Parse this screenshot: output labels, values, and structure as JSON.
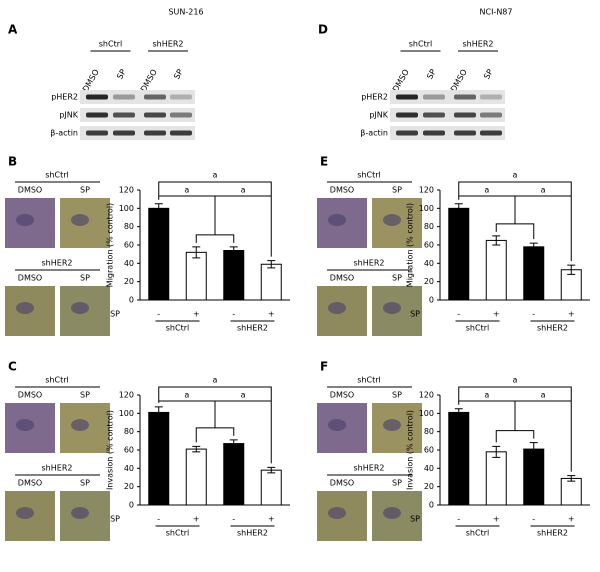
{
  "blots": [
    {
      "panel": "A",
      "cell_line": "SUN-216",
      "groups": [
        "shCtrl",
        "shHER2"
      ],
      "lanes": [
        "DMSO",
        "SP",
        "DMSO",
        "SP"
      ],
      "rows": [
        "pHER2",
        "pJNK",
        "β-actin"
      ]
    },
    {
      "panel": "D",
      "cell_line": "NCI-N87",
      "groups": [
        "shCtrl",
        "shHER2"
      ],
      "lanes": [
        "DMSO",
        "SP",
        "DMSO",
        "SP"
      ],
      "rows": [
        "pHER2",
        "pJNK",
        "β-actin"
      ]
    }
  ],
  "image_panels": [
    {
      "panel": "B",
      "rows": [
        {
          "group": "shCtrl",
          "columns": [
            "DMSO",
            "SP"
          ]
        },
        {
          "group": "shHER2",
          "columns": [
            "DMSO",
            "SP"
          ]
        }
      ]
    },
    {
      "panel": "C",
      "rows": [
        {
          "group": "shCtrl",
          "columns": [
            "DMSO",
            "SP"
          ]
        },
        {
          "group": "shHER2",
          "columns": [
            "DMSO",
            "SP"
          ]
        }
      ]
    },
    {
      "panel": "E",
      "rows": [
        {
          "group": "shCtrl",
          "columns": [
            "DMSO",
            "SP"
          ]
        },
        {
          "group": "shHER2",
          "columns": [
            "DMSO",
            "SP"
          ]
        }
      ]
    },
    {
      "panel": "F",
      "rows": [
        {
          "group": "shCtrl",
          "columns": [
            "DMSO",
            "SP"
          ]
        },
        {
          "group": "shHER2",
          "columns": [
            "DMSO",
            "SP"
          ]
        }
      ]
    }
  ],
  "chart_data": [
    {
      "type": "bar",
      "y_label": "Migration (% control)",
      "row_label": "SP",
      "categories": [
        "-",
        "+",
        "-",
        "+"
      ],
      "groups": [
        "shCtrl",
        "shHER2"
      ],
      "values": [
        100,
        52,
        54,
        39
      ],
      "errors": [
        5,
        6,
        4,
        4
      ],
      "colors": [
        "#000000",
        "#ffffff",
        "#000000",
        "#ffffff"
      ],
      "ylim": [
        0,
        120
      ],
      "yticks": [
        0,
        20,
        40,
        60,
        80,
        100,
        120
      ],
      "annotations": [
        "a",
        "a",
        "a"
      ]
    },
    {
      "type": "bar",
      "y_label": "Invasion (% control)",
      "row_label": "SP",
      "categories": [
        "-",
        "+",
        "-",
        "+"
      ],
      "groups": [
        "shCtrl",
        "shHER2"
      ],
      "values": [
        101,
        61,
        67,
        38
      ],
      "errors": [
        6,
        3,
        4,
        3
      ],
      "colors": [
        "#000000",
        "#ffffff",
        "#000000",
        "#ffffff"
      ],
      "ylim": [
        0,
        120
      ],
      "yticks": [
        0,
        20,
        40,
        60,
        80,
        100,
        120
      ],
      "annotations": [
        "a",
        "a",
        "a"
      ]
    },
    {
      "type": "bar",
      "y_label": "Migration (% control)",
      "row_label": "SP",
      "categories": [
        "-",
        "+",
        "-",
        "+"
      ],
      "groups": [
        "shCtrl",
        "shHER2"
      ],
      "values": [
        100,
        65,
        58,
        33
      ],
      "errors": [
        5,
        5,
        4,
        5
      ],
      "colors": [
        "#000000",
        "#ffffff",
        "#000000",
        "#ffffff"
      ],
      "ylim": [
        0,
        120
      ],
      "yticks": [
        0,
        20,
        40,
        60,
        80,
        100,
        120
      ],
      "annotations": [
        "a",
        "a",
        "a"
      ]
    },
    {
      "type": "bar",
      "y_label": "Invasion (% control)",
      "row_label": "SP",
      "categories": [
        "-",
        "+",
        "-",
        "+"
      ],
      "groups": [
        "shCtrl",
        "shHER2"
      ],
      "values": [
        101,
        58,
        61,
        29
      ],
      "errors": [
        4,
        6,
        7,
        3
      ],
      "colors": [
        "#000000",
        "#ffffff",
        "#000000",
        "#ffffff"
      ],
      "ylim": [
        0,
        120
      ],
      "yticks": [
        0,
        20,
        40,
        60,
        80,
        100,
        120
      ],
      "annotations": [
        "a",
        "a",
        "a"
      ]
    }
  ]
}
